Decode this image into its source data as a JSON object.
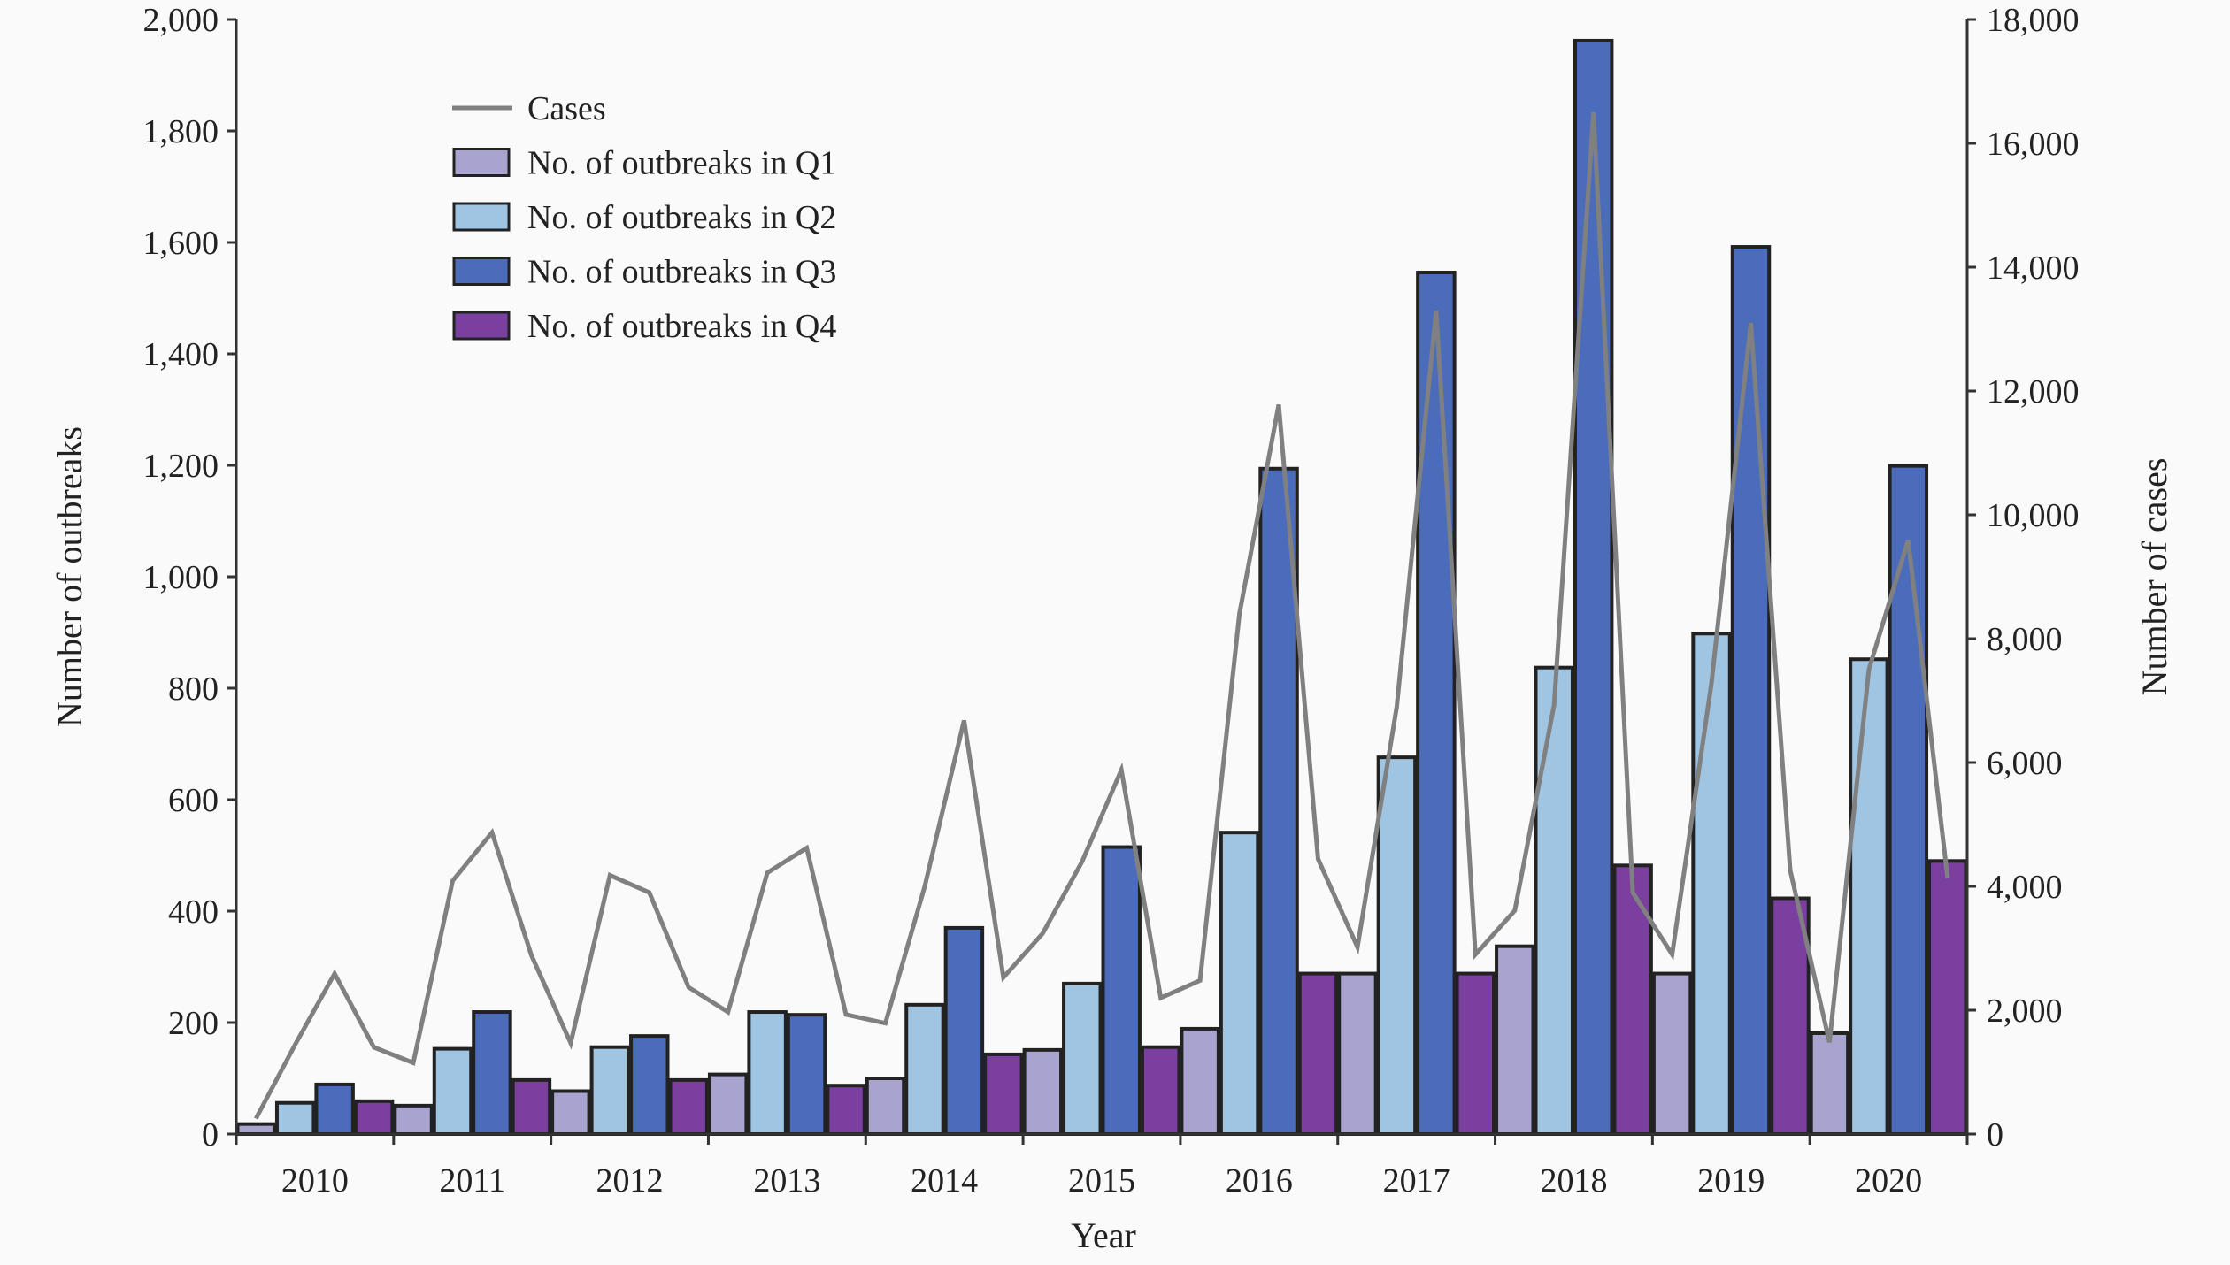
{
  "chart_data": {
    "type": "bar",
    "title": "",
    "xlabel": "Year",
    "ylabel": "Number of outbreaks",
    "y2label": "Number of cases",
    "ylim": [
      0,
      2000
    ],
    "y2lim": [
      0,
      18000
    ],
    "yticks": [
      "0",
      "200",
      "400",
      "600",
      "800",
      "1,000",
      "1,200",
      "1,400",
      "1,600",
      "1,800",
      "2,000"
    ],
    "y2ticks": [
      "0",
      "2,000",
      "4,000",
      "6,000",
      "8,000",
      "10,000",
      "12,000",
      "14,000",
      "16,000",
      "18,000"
    ],
    "categories": [
      "2010",
      "2011",
      "2012",
      "2013",
      "2014",
      "2015",
      "2016",
      "2017",
      "2018",
      "2019",
      "2020"
    ],
    "grid": false,
    "legend_placement": "top-left",
    "series": [
      {
        "name": "No. of outbreaks in Q1",
        "type": "bar",
        "color": "#a9a3cf",
        "values": [
          18,
          51,
          77,
          107,
          100,
          151,
          189,
          288,
          337,
          288,
          181
        ]
      },
      {
        "name": "No. of outbreaks in Q2",
        "type": "bar",
        "color": "#9fc5e3",
        "values": [
          56,
          153,
          156,
          219,
          232,
          270,
          541,
          676,
          837,
          898,
          852
        ]
      },
      {
        "name": "No. of outbreaks in Q3",
        "type": "bar",
        "color": "#4a6cba",
        "values": [
          89,
          219,
          176,
          214,
          370,
          515,
          1194,
          1546,
          1962,
          1592,
          1199
        ]
      },
      {
        "name": "No. of outbreaks in Q4",
        "type": "bar",
        "color": "#7b3fa0",
        "values": [
          59,
          97,
          97,
          87,
          143,
          156,
          288,
          288,
          482,
          423,
          490
        ]
      }
    ],
    "line": {
      "name": "Cases",
      "axis": "right",
      "color": "#808080",
      "values": [
        250,
        1450,
        2590,
        1400,
        1150,
        4090,
        4870,
        2890,
        1470,
        4180,
        3900,
        2370,
        1970,
        4220,
        4620,
        1930,
        1790,
        4000,
        6680,
        2530,
        3240,
        4400,
        5880,
        2200,
        2480,
        8400,
        11780,
        4440,
        3020,
        6900,
        13300,
        2900,
        3610,
        6930,
        16500,
        3900,
        2900,
        7280,
        13100,
        4260,
        1480,
        7500,
        9590,
        4140
      ]
    }
  }
}
